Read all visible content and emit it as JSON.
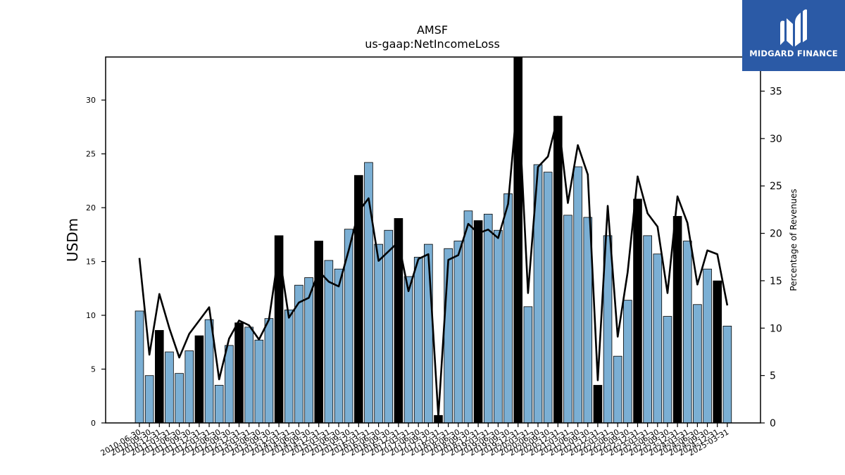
{
  "chart_data": {
    "type": "bar",
    "title": "AMSF",
    "subtitle": "us-gaap:NetIncomeLoss",
    "ylabel": "USDm",
    "ylabel_right": "Percentage of Revenues",
    "ylim": [
      0,
      34
    ],
    "ylim_right": [
      0,
      38.6
    ],
    "yticks": [
      0,
      5,
      10,
      15,
      20,
      25,
      30
    ],
    "yticks_right": [
      0,
      5,
      10,
      15,
      20,
      25,
      30,
      35
    ],
    "grid": false,
    "categories": [
      "2010-06-30",
      "2010-09-30",
      "2010-12-31",
      "2011-03-31",
      "2011-06-30",
      "2011-09-30",
      "2011-12-31",
      "2012-03-31",
      "2012-06-30",
      "2012-09-30",
      "2012-12-31",
      "2013-03-31",
      "2013-06-30",
      "2013-09-30",
      "2013-12-31",
      "2014-03-31",
      "2014-06-30",
      "2014-09-30",
      "2014-12-31",
      "2015-03-31",
      "2015-06-30",
      "2015-09-30",
      "2015-12-31",
      "2016-03-31",
      "2016-06-30",
      "2016-09-30",
      "2016-12-31",
      "2017-03-31",
      "2017-06-30",
      "2017-09-30",
      "2017-12-31",
      "2018-03-31",
      "2018-06-30",
      "2018-09-30",
      "2018-12-31",
      "2019-03-31",
      "2019-06-30",
      "2019-09-30",
      "2019-12-31",
      "2020-03-31",
      "2020-06-30",
      "2020-09-30",
      "2020-12-31",
      "2021-03-31",
      "2021-06-30",
      "2021-09-30",
      "2021-12-31",
      "2022-03-31",
      "2022-06-30",
      "2022-09-30",
      "2022-12-31",
      "2023-03-31",
      "2023-06-30",
      "2023-09-30",
      "2023-12-31",
      "2024-03-31",
      "2024-06-30",
      "2024-09-30",
      "2024-12-31",
      "2025-03-31"
    ],
    "series": [
      {
        "type": "bar",
        "values": [
          10.4,
          4.4,
          8.6,
          6.6,
          4.6,
          6.7,
          8.1,
          9.6,
          3.5,
          7.2,
          9.3,
          8.9,
          7.7,
          9.7,
          17.4,
          10.5,
          12.8,
          13.5,
          16.9,
          15.1,
          14.3,
          18.0,
          23.0,
          24.2,
          16.6,
          17.9,
          19.0,
          13.6,
          15.4,
          16.6,
          0.7,
          16.2,
          16.9,
          19.7,
          18.8,
          19.4,
          17.9,
          21.3,
          34.0,
          10.8,
          24.0,
          23.3,
          28.5,
          19.3,
          23.8,
          19.1,
          3.5,
          17.4,
          6.2,
          11.4,
          20.8,
          17.4,
          15.7,
          9.9,
          19.2,
          16.9,
          11.0,
          14.3,
          13.2,
          9.0
        ],
        "highlight_fourth_quarter": true,
        "colors": {
          "bar": "#7bafd4",
          "highlight": "#000000"
        }
      },
      {
        "type": "line",
        "axis": "right",
        "values": [
          17.4,
          7.2,
          13.6,
          10.0,
          6.9,
          9.4,
          10.8,
          12.2,
          4.6,
          8.9,
          10.8,
          10.3,
          8.8,
          10.9,
          18.1,
          11.1,
          12.7,
          13.2,
          16.0,
          14.9,
          14.4,
          18.2,
          22.3,
          23.7,
          17.1,
          18.1,
          19.1,
          13.9,
          17.3,
          17.8,
          0.7,
          17.2,
          17.7,
          21.0,
          20.0,
          20.4,
          19.5,
          23.1,
          34.8,
          13.7,
          27.0,
          28.1,
          32.3,
          23.2,
          29.3,
          26.2,
          4.5,
          22.9,
          9.1,
          15.9,
          26.0,
          22.1,
          20.7,
          13.7,
          23.9,
          21.1,
          14.6,
          18.2,
          17.8,
          12.4
        ],
        "colors": {
          "line": "#000000"
        }
      }
    ]
  },
  "logo": {
    "text": "MIDGARD FINANCE",
    "color": "#2b5aa6"
  }
}
